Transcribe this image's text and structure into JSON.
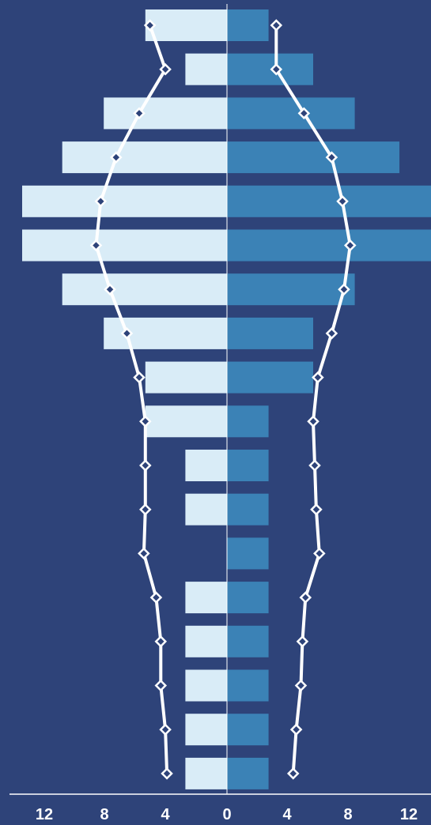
{
  "chart_data": {
    "type": "bar",
    "orientation": "horizontal",
    "layout": "population-pyramid",
    "title": "",
    "xlabel": "",
    "ylabel": "",
    "xlim": [
      -13.25,
      13.25
    ],
    "x_ticks": [
      {
        "value": -12,
        "label": "12"
      },
      {
        "value": -8,
        "label": "8"
      },
      {
        "value": -4,
        "label": "4"
      },
      {
        "value": 0,
        "label": "0"
      },
      {
        "value": 4,
        "label": "4"
      },
      {
        "value": 8,
        "label": "8"
      },
      {
        "value": 12,
        "label": "12"
      }
    ],
    "grid": false,
    "legend": "none",
    "bar_series": [
      {
        "side": "left",
        "color": "#d9ecf7",
        "values": [
          5.3,
          2.7,
          8,
          10.7,
          13.3,
          13.3,
          10.7,
          8,
          5.3,
          5.3,
          2.7,
          2.7,
          0,
          2.7,
          2.7,
          2.7,
          2.7,
          2.7
        ]
      },
      {
        "side": "right",
        "color": "#3b82b6",
        "values": [
          2.7,
          5.6,
          8.3,
          11.2,
          13.3,
          13.3,
          8.3,
          5.6,
          5.6,
          2.7,
          2.7,
          2.7,
          2.7,
          2.7,
          2.7,
          2.7,
          2.7,
          2.7
        ]
      }
    ],
    "line_series": [
      {
        "side": "left",
        "color": "#ffffff",
        "marker": "diamond",
        "values": [
          5.0,
          4.0,
          5.7,
          7.2,
          8.2,
          8.5,
          7.6,
          6.5,
          5.7,
          5.3,
          5.3,
          5.3,
          5.4,
          4.6,
          4.3,
          4.3,
          4.0,
          3.9
        ]
      },
      {
        "side": "right",
        "color": "#ffffff",
        "marker": "diamond",
        "values": [
          3.2,
          3.2,
          5.0,
          6.8,
          7.5,
          8.0,
          7.6,
          6.8,
          5.9,
          5.6,
          5.7,
          5.8,
          6.0,
          5.1,
          4.9,
          4.8,
          4.5,
          4.3
        ]
      }
    ]
  },
  "colors": {
    "background": "#2e4379",
    "axis": "#ffffff",
    "zero_line": "#ffffff"
  }
}
